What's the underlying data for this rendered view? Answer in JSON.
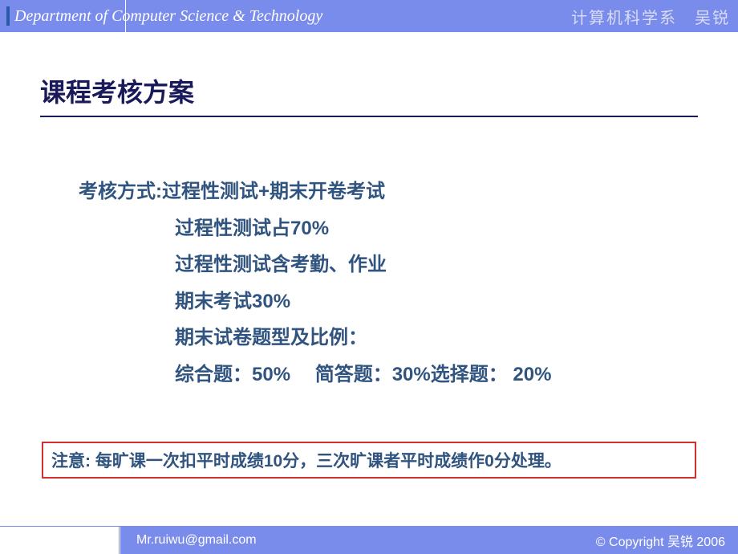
{
  "header": {
    "dept_title": "Department of Computer Science & Technology",
    "right_text": "计算机科学系　吴锐"
  },
  "slide": {
    "title": "课程考核方案",
    "lines": {
      "l0": "考核方式:过程性测试+期末开卷考试",
      "l1": "过程性测试占70%",
      "l2": "过程性测试含考勤、作业",
      "l3": "期末考试30%",
      "l4": "期末试卷题型及比例：",
      "l5": "综合题：50%　 简答题：30%选择题： 20%"
    },
    "note": "注意: 每旷课一次扣平时成绩10分，三次旷课者平时成绩作0分处理。"
  },
  "footer": {
    "email": "Mr.ruiwu@gmail.com",
    "copyright": "© Copyright  吴锐 2006"
  },
  "colors": {
    "header_bg": "#7a8ceb",
    "text_main": "#30547f",
    "title": "#1a1a5a",
    "note_border": "#d03030"
  }
}
